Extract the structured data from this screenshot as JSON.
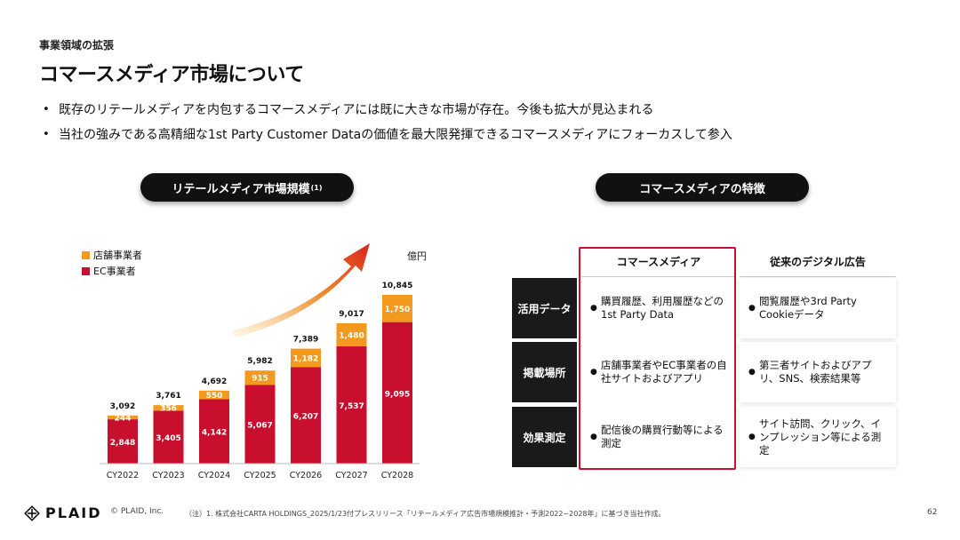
{
  "header": {
    "breadcrumb": "事業領域の拡張",
    "title": "コマースメディア市場について"
  },
  "bullets": [
    "既存のリテールメディアを内包するコマースメディアには既に大きな市場が存在。今後も拡大が見込まれる",
    "当社の強みである高精細な1st Party Customer Dataの価値を最大限発揮できるコマースメディアにフォーカスして参入"
  ],
  "left_panel": {
    "pill_label": "リテールメディア市場規模",
    "pill_superscript": "(1)",
    "unit": "億円"
  },
  "chart_data": {
    "type": "bar",
    "stacked": true,
    "categories": [
      "CY2022",
      "CY2023",
      "CY2024",
      "CY2025",
      "CY2026",
      "CY2027",
      "CY2028"
    ],
    "series": [
      {
        "name": "EC事業者",
        "color": "#c8102e",
        "values": [
          2848,
          3405,
          4142,
          5067,
          6207,
          7537,
          9095
        ]
      },
      {
        "name": "店舗事業者",
        "color": "#f39a1e",
        "values": [
          244,
          356,
          550,
          915,
          1182,
          1480,
          1750
        ]
      }
    ],
    "totals": [
      3092,
      3761,
      4692,
      5982,
      7389,
      9017,
      10845
    ],
    "total_labels": [
      "3,092",
      "3,761",
      "4,692",
      "5,982",
      "7,389",
      "9,017",
      "10,845"
    ],
    "series_labels": {
      "EC事業者": [
        "2,848",
        "3,405",
        "4,142",
        "5,067",
        "6,207",
        "7,537",
        "9,095"
      ],
      "店舗事業者": [
        "244",
        "356",
        "550",
        "915",
        "1,182",
        "1,480",
        "1,750"
      ]
    },
    "ylim": [
      0,
      11000
    ],
    "legend_position": "top-left",
    "growth_arrow": true
  },
  "right_panel": {
    "pill_label": "コマースメディアの特徴",
    "columns": [
      "コマースメディア",
      "従来のデジタル広告"
    ],
    "rows": [
      {
        "label": "活用データ",
        "commerce": "購買履歴、利用履歴などの1st Party Data",
        "traditional": "閲覧履歴や3rd Party Cookieデータ"
      },
      {
        "label": "掲載場所",
        "commerce": "店舗事業者やEC事業者の自社サイトおよびアプリ",
        "traditional": "第三者サイトおよびアプリ、SNS、検索結果等"
      },
      {
        "label": "効果測定",
        "commerce": "配信後の購買行動等による測定",
        "traditional": "サイト訪問、クリック、インプレッション等による測定"
      }
    ],
    "bullet_glyph": "●",
    "highlight_color": "#c8102e"
  },
  "footer": {
    "logo": "PLAID",
    "copyright": "© PLAID, Inc.",
    "footnote": "（注）1. 株式会社CARTA HOLDINGS_2025/1/23付プレスリリース「リテールメディア広告市場規模推計・予測2022~2028年」に基づき当社作成。",
    "page_number": "62"
  }
}
